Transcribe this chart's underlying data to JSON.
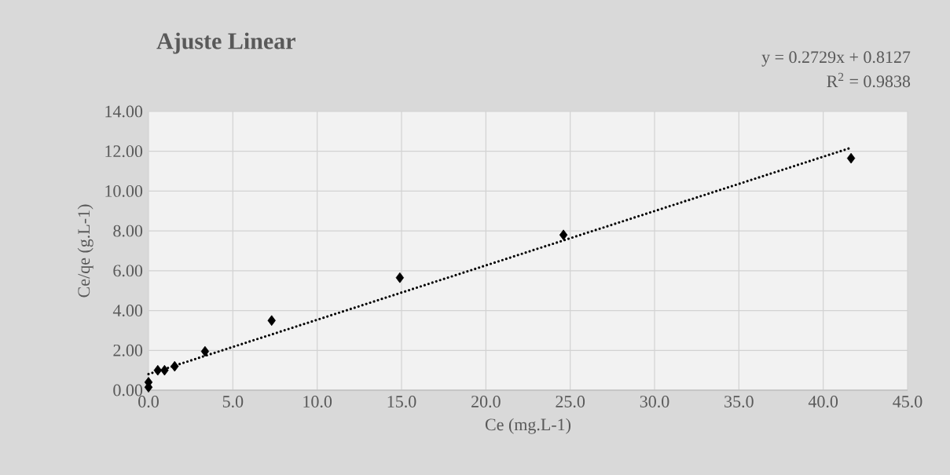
{
  "chart_data": {
    "type": "scatter",
    "title": "Ajuste Linear",
    "xlabel": "Ce (mg.L-1)",
    "ylabel": "Ce/qe (g.L-1)",
    "annotations": [
      "y = 0.2729x + 0.8127",
      "R$^{2}$ = 0.9838"
    ],
    "x": [
      0,
      0,
      0.55,
      0.95,
      1.55,
      3.35,
      7.3,
      14.9,
      24.6,
      41.65
    ],
    "series": [
      {
        "color": "#000000",
        "marker": "diamond",
        "values": [
          0.15,
          0.4,
          1.0,
          1.0,
          1.2,
          1.95,
          3.5,
          5.65,
          7.8,
          11.65
        ]
      },
      {
        "type": "line",
        "color": "#000000",
        "line_style": "dotted",
        "marker": "none",
        "x": [
          0,
          41.65
        ],
        "values": [
          0.81,
          12.18
        ]
      }
    ],
    "xlim": [
      0,
      45
    ],
    "ylim": [
      0,
      14
    ],
    "xticks": [
      {
        "value": 0,
        "label": "0.0"
      },
      {
        "value": 5,
        "label": "5.0"
      },
      {
        "value": 10,
        "label": "10.0"
      },
      {
        "value": 15,
        "label": "15.0"
      },
      {
        "value": 20,
        "label": "20.0"
      },
      {
        "value": 25,
        "label": "25.0"
      },
      {
        "value": 30,
        "label": "30.0"
      },
      {
        "value": 35,
        "label": "35.0"
      },
      {
        "value": 40,
        "label": "40.0"
      },
      {
        "value": 45,
        "label": "45.0"
      }
    ],
    "yticks": [
      {
        "value": 0,
        "label": "0.00"
      },
      {
        "value": 2,
        "label": "2.00"
      },
      {
        "value": 4,
        "label": "4.00"
      },
      {
        "value": 6,
        "label": "6.00"
      },
      {
        "value": 8,
        "label": "8.00"
      },
      {
        "value": 10,
        "label": "10.00"
      },
      {
        "value": 12,
        "label": "12.00"
      },
      {
        "value": 14,
        "label": "14.00"
      }
    ],
    "grid": true,
    "legend": false
  }
}
